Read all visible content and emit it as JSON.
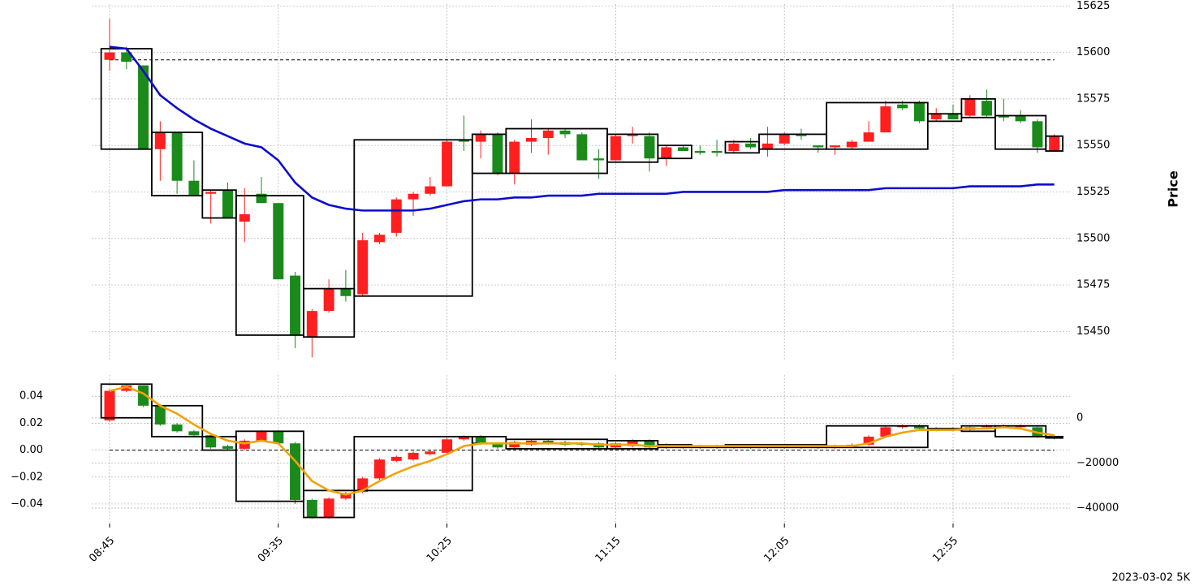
{
  "chart_data": [
    {
      "type": "candlestick",
      "ylabel": "Price",
      "yaxis_side": "right",
      "grid": true,
      "up_color": "#ff1f1f",
      "down_color": "#1a8a1a",
      "ylim": [
        15434,
        15626
      ],
      "yticks": [
        15450,
        15475,
        15500,
        15525,
        15550,
        15575,
        15600,
        15625
      ],
      "open": [
        15596,
        15600,
        15593,
        15548,
        15557,
        15531,
        15524,
        15526,
        15509,
        15524,
        15519,
        15480,
        15447,
        15461,
        15473,
        15470,
        15498,
        15503,
        15521,
        15524,
        15528,
        15553,
        15552,
        15556,
        15535,
        15552,
        15554,
        15558,
        15556,
        15543,
        15542,
        15555,
        15555,
        15543,
        15549,
        15547,
        15547,
        15547,
        15551,
        15548,
        15551,
        15556,
        15550,
        15549,
        15549,
        15552,
        15557,
        15572,
        15573,
        15564,
        15567,
        15566,
        15574,
        15566,
        15566,
        15563,
        15547
      ],
      "high": [
        15618,
        15603,
        15593,
        15563,
        15557,
        15542,
        15526,
        15530,
        15527,
        15533,
        15519,
        15482,
        15462,
        15478,
        15483,
        15503,
        15503,
        15522,
        15525,
        15533,
        15553,
        15566,
        15558,
        15557,
        15553,
        15564,
        15559,
        15559,
        15557,
        15548,
        15556,
        15560,
        15557,
        15550,
        15550,
        15550,
        15553,
        15553,
        15554,
        15560,
        15557,
        15559,
        15550,
        15550,
        15553,
        15563,
        15574,
        15574,
        15574,
        15570,
        15572,
        15577,
        15580,
        15575,
        15569,
        15564,
        15556
      ],
      "low": [
        15590,
        15591,
        15548,
        15531,
        15524,
        15523,
        15508,
        15511,
        15498,
        15519,
        15478,
        15441,
        15436,
        15460,
        15466,
        15469,
        15497,
        15501,
        15512,
        15523,
        15528,
        15547,
        15543,
        15534,
        15529,
        15546,
        15545,
        15554,
        15542,
        15532,
        15542,
        15551,
        15536,
        15539,
        15547,
        15545,
        15544,
        15546,
        15548,
        15544,
        15550,
        15553,
        15546,
        15545,
        15548,
        15552,
        15557,
        15569,
        15562,
        15563,
        15564,
        15565,
        15565,
        15563,
        15562,
        15546,
        15547
      ],
      "close": [
        15600,
        15595,
        15548,
        15557,
        15531,
        15523,
        15525,
        15511,
        15513,
        15519,
        15478,
        15448,
        15461,
        15473,
        15469,
        15499,
        15502,
        15521,
        15524,
        15528,
        15552,
        15552,
        15556,
        15535,
        15552,
        15554,
        15558,
        15556,
        15542,
        15542,
        15555,
        15556,
        15543,
        15549,
        15547,
        15546,
        15546,
        15551,
        15549,
        15551,
        15556,
        15555,
        15549,
        15550,
        15552,
        15557,
        15571,
        15570,
        15563,
        15567,
        15564,
        15575,
        15566,
        15565,
        15563,
        15549,
        15555
      ],
      "lines": [
        {
          "color": "#0c0ccc",
          "values": [
            15603,
            15602,
            15590,
            15577,
            15570,
            15564,
            15559,
            15555,
            15551,
            15549,
            15542,
            15530,
            15522,
            15518,
            15516,
            15515,
            15515,
            15515,
            15515,
            15516,
            15518,
            15520,
            15521,
            15521,
            15522,
            15522,
            15523,
            15523,
            15523,
            15524,
            15524,
            15524,
            15524,
            15524,
            15525,
            15525,
            15525,
            15525,
            15525,
            15525,
            15526,
            15526,
            15526,
            15526,
            15526,
            15526,
            15527,
            15527,
            15527,
            15527,
            15527,
            15528,
            15528,
            15528,
            15528,
            15529,
            15529
          ]
        }
      ],
      "hlines": [
        15596
      ],
      "boxes": [
        {
          "start": 0,
          "end": 2,
          "high": 15602,
          "low": 15548
        },
        {
          "start": 3,
          "end": 5,
          "high": 15557,
          "low": 15523
        },
        {
          "start": 6,
          "end": 7,
          "high": 15526,
          "low": 15511
        },
        {
          "start": 8,
          "end": 11,
          "high": 15523,
          "low": 15448
        },
        {
          "start": 12,
          "end": 14,
          "high": 15473,
          "low": 15447
        },
        {
          "start": 15,
          "end": 21,
          "high": 15553,
          "low": 15469
        },
        {
          "start": 22,
          "end": 23,
          "high": 15556,
          "low": 15535
        },
        {
          "start": 24,
          "end": 29,
          "high": 15559,
          "low": 15535
        },
        {
          "start": 30,
          "end": 32,
          "high": 15556,
          "low": 15541
        },
        {
          "start": 33,
          "end": 34,
          "high": 15550,
          "low": 15543
        },
        {
          "start": 37,
          "end": 38,
          "high": 15552,
          "low": 15546
        },
        {
          "start": 39,
          "end": 42,
          "high": 15556,
          "low": 15548
        },
        {
          "start": 43,
          "end": 48,
          "high": 15573,
          "low": 15548
        },
        {
          "start": 49,
          "end": 50,
          "high": 15567,
          "low": 15563
        },
        {
          "start": 51,
          "end": 52,
          "high": 15575,
          "low": 15565
        },
        {
          "start": 53,
          "end": 55,
          "high": 15566,
          "low": 15548
        },
        {
          "start": 56,
          "end": 56,
          "high": 15555,
          "low": 15547
        }
      ]
    },
    {
      "type": "candlestick",
      "yaxis_side": "left",
      "grid": true,
      "annotation": "2023-03-02 5K",
      "up_color": "#ff1f1f",
      "down_color": "#1a8a1a",
      "categories": [
        "08:45",
        null,
        null,
        null,
        null,
        null,
        null,
        null,
        null,
        null,
        "09:35",
        null,
        null,
        null,
        null,
        null,
        null,
        null,
        null,
        null,
        "10:25",
        null,
        null,
        null,
        null,
        null,
        null,
        null,
        null,
        null,
        "11:15",
        null,
        null,
        null,
        null,
        null,
        null,
        null,
        null,
        null,
        "12:05",
        null,
        null,
        null,
        null,
        null,
        null,
        null,
        null,
        null,
        "12:55",
        null,
        null,
        null,
        null,
        null,
        null
      ],
      "ylim": [
        -0.0545,
        0.0558
      ],
      "yticks": [
        {
          "value": -0.04,
          "label": "−0.04"
        },
        {
          "value": -0.02,
          "label": "−0.02"
        },
        {
          "value": 0,
          "label": "0.00"
        },
        0.02,
        0.04
      ],
      "y2lim": [
        -46850,
        19100
      ],
      "y2ticks": [
        {
          "value": -40000,
          "label": "−40000"
        },
        {
          "value": -20000,
          "label": "−20000"
        },
        0
      ],
      "open": [
        0.022,
        0.044,
        0.048,
        0.033,
        0.019,
        0.014,
        0.011,
        0.003,
        0.001,
        0.007,
        0.014,
        0.005,
        -0.037,
        -0.05,
        -0.036,
        -0.031,
        -0.021,
        -0.008,
        -0.007,
        -0.003,
        -0.002,
        0.008,
        0.01,
        0.005,
        0.002,
        0.004,
        0.007,
        0.006,
        0.005,
        0.005,
        0.002,
        0.003,
        0.007,
        0.004,
        0.003,
        0.003,
        0.003,
        0.003,
        0.003,
        0.003,
        0.003,
        0.003,
        0.003,
        0.002,
        0.003,
        0.004,
        0.01,
        0.017,
        0.018,
        0.016,
        0.015,
        0.015,
        0.017,
        0.018,
        0.017,
        0.017,
        0.01
      ],
      "high": [
        0.045,
        0.049,
        0.048,
        0.034,
        0.02,
        0.015,
        0.012,
        0.004,
        0.008,
        0.015,
        0.015,
        0.006,
        -0.036,
        -0.035,
        -0.031,
        -0.02,
        -0.006,
        -0.004,
        -0.001,
        0,
        0.009,
        0.011,
        0.011,
        0.006,
        0.007,
        0.008,
        0.008,
        0.007,
        0.006,
        0.006,
        0.006,
        0.008,
        0.008,
        0.005,
        0.004,
        0.004,
        0.004,
        0.004,
        0.004,
        0.004,
        0.004,
        0.004,
        0.004,
        0.004,
        0.005,
        0.011,
        0.018,
        0.019,
        0.019,
        0.017,
        0.017,
        0.018,
        0.019,
        0.019,
        0.019,
        0.018,
        0.011
      ],
      "low": [
        0.021,
        0.043,
        0.032,
        0.018,
        0.013,
        0.01,
        0.001,
        0,
        0,
        0.006,
        0.004,
        -0.04,
        -0.051,
        -0.051,
        -0.037,
        -0.032,
        -0.022,
        -0.009,
        -0.008,
        -0.004,
        -0.003,
        0.007,
        0.004,
        0.001,
        0.001,
        0.003,
        0.004,
        0.003,
        0.003,
        0.001,
        0.001,
        0.002,
        0.001,
        0.001,
        0.001,
        0.001,
        0.001,
        0.001,
        0.001,
        0.001,
        0.001,
        0.001,
        0.001,
        0.001,
        0.002,
        0.003,
        0.009,
        0.016,
        0.015,
        0.014,
        0.014,
        0.014,
        0.016,
        0.016,
        0.016,
        0.009,
        0.008
      ],
      "close": [
        0.044,
        0.048,
        0.033,
        0.019,
        0.014,
        0.011,
        0.002,
        0.001,
        0.007,
        0.014,
        0.005,
        -0.037,
        -0.05,
        -0.036,
        -0.032,
        -0.021,
        -0.007,
        -0.005,
        -0.002,
        -0.001,
        0.008,
        0.01,
        0.005,
        0.002,
        0.006,
        0.007,
        0.005,
        0.004,
        0.004,
        0.002,
        0.005,
        0.007,
        0.002,
        0.002,
        0.002,
        0.002,
        0.002,
        0.002,
        0.002,
        0.002,
        0.002,
        0.002,
        0.002,
        0.003,
        0.004,
        0.01,
        0.017,
        0.018,
        0.016,
        0.015,
        0.016,
        0.017,
        0.018,
        0.017,
        0.018,
        0.01,
        0.009
      ],
      "lines": [
        {
          "color": "#f0a30a",
          "values": [
            0.044,
            0.047,
            0.042,
            0.033,
            0.027,
            0.019,
            0.012,
            0.007,
            0.005,
            0.007,
            0.005,
            -0.008,
            -0.023,
            -0.03,
            -0.033,
            -0.03,
            -0.023,
            -0.017,
            -0.012,
            -0.008,
            -0.003,
            0.003,
            0.005,
            0.005,
            0.005,
            0.005,
            0.005,
            0.005,
            0.005,
            0.004,
            0.004,
            0.004,
            0.003,
            0.003,
            0.003,
            0.003,
            0.003,
            0.003,
            0.003,
            0.003,
            0.003,
            0.003,
            0.003,
            0.003,
            0.003,
            0.005,
            0.01,
            0.013,
            0.015,
            0.015,
            0.015,
            0.016,
            0.016,
            0.017,
            0.016,
            0.013,
            0.011
          ]
        }
      ],
      "hlines": [
        0
      ],
      "boxes": [
        {
          "start": 0,
          "end": 2,
          "high": 0.049,
          "low": 0.024
        },
        {
          "start": 3,
          "end": 5,
          "high": 0.033,
          "low": 0.01
        },
        {
          "start": 6,
          "end": 7,
          "high": 0.01,
          "low": 0
        },
        {
          "start": 8,
          "end": 11,
          "high": 0.014,
          "low": -0.038
        },
        {
          "start": 12,
          "end": 14,
          "high": -0.03,
          "low": -0.05
        },
        {
          "start": 15,
          "end": 21,
          "high": 0.01,
          "low": -0.03
        },
        {
          "start": 22,
          "end": 23,
          "high": 0.01,
          "low": 0.005
        },
        {
          "start": 24,
          "end": 29,
          "high": 0.008,
          "low": 0.001
        },
        {
          "start": 30,
          "end": 32,
          "high": 0.007,
          "low": 0.001
        },
        {
          "start": 33,
          "end": 34,
          "high": 0.004,
          "low": 0.002
        },
        {
          "start": 35,
          "end": 36,
          "high": 0.003,
          "low": 0.002
        },
        {
          "start": 37,
          "end": 38,
          "high": 0.004,
          "low": 0.002
        },
        {
          "start": 39,
          "end": 42,
          "high": 0.004,
          "low": 0.002
        },
        {
          "start": 43,
          "end": 48,
          "high": 0.018,
          "low": 0.002
        },
        {
          "start": 49,
          "end": 50,
          "high": 0.016,
          "low": 0.015
        },
        {
          "start": 51,
          "end": 52,
          "high": 0.018,
          "low": 0.014
        },
        {
          "start": 53,
          "end": 55,
          "high": 0.018,
          "low": 0.01
        },
        {
          "start": 56,
          "end": 56,
          "high": 0.01,
          "low": 0.009
        }
      ]
    }
  ]
}
